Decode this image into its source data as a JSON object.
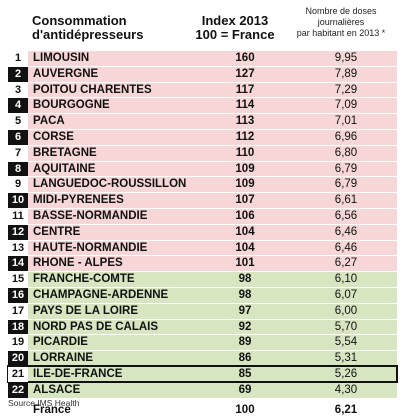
{
  "header": {
    "col1": [
      "Consommation",
      "d'antidépresseurs"
    ],
    "col2": [
      "Index  2013",
      "100 = France"
    ],
    "col3": [
      "Nombre de doses",
      "journalières",
      "par habitant en 2013 *"
    ]
  },
  "colors": {
    "pink": "#f6d6d6",
    "green": "#d7e5c1",
    "rank_dark": "#111111"
  },
  "rows": [
    {
      "rank": "1",
      "name": "LIMOUSIN",
      "index": "160",
      "doses": "9,95",
      "group": "pink",
      "rank_style": "light"
    },
    {
      "rank": "2",
      "name": "AUVERGNE",
      "index": "127",
      "doses": "7,89",
      "group": "pink",
      "rank_style": "dark"
    },
    {
      "rank": "3",
      "name": "POITOU CHARENTES",
      "index": "117",
      "doses": "7,29",
      "group": "pink",
      "rank_style": "light"
    },
    {
      "rank": "4",
      "name": "BOURGOGNE",
      "index": "114",
      "doses": "7,09",
      "group": "pink",
      "rank_style": "dark"
    },
    {
      "rank": "5",
      "name": "PACA",
      "index": "113",
      "doses": "7,01",
      "group": "pink",
      "rank_style": "light"
    },
    {
      "rank": "6",
      "name": "CORSE",
      "index": "112",
      "doses": "6,96",
      "group": "pink",
      "rank_style": "dark"
    },
    {
      "rank": "7",
      "name": "BRETAGNE",
      "index": "110",
      "doses": "6,80",
      "group": "pink",
      "rank_style": "light"
    },
    {
      "rank": "8",
      "name": "AQUITAINE",
      "index": "109",
      "doses": "6,79",
      "group": "pink",
      "rank_style": "dark"
    },
    {
      "rank": "9",
      "name": "LANGUEDOC-ROUSSILLON",
      "index": "109",
      "doses": "6,79",
      "group": "pink",
      "rank_style": "light"
    },
    {
      "rank": "10",
      "name": "MIDI-PYRENEES",
      "index": "107",
      "doses": "6,61",
      "group": "pink",
      "rank_style": "dark"
    },
    {
      "rank": "11",
      "name": "BASSE-NORMANDIE",
      "index": "106",
      "doses": "6,56",
      "group": "pink",
      "rank_style": "light"
    },
    {
      "rank": "12",
      "name": "CENTRE",
      "index": "104",
      "doses": "6,46",
      "group": "pink",
      "rank_style": "dark"
    },
    {
      "rank": "13",
      "name": "HAUTE-NORMANDIE",
      "index": "104",
      "doses": "6,46",
      "group": "pink",
      "rank_style": "light"
    },
    {
      "rank": "14",
      "name": "RHONE - ALPES",
      "index": "101",
      "doses": "6,27",
      "group": "pink",
      "rank_style": "dark"
    },
    {
      "rank": "15",
      "name": "FRANCHE-COMTE",
      "index": "98",
      "doses": "6,10",
      "group": "green",
      "rank_style": "light"
    },
    {
      "rank": "16",
      "name": "CHAMPAGNE-ARDENNE",
      "index": "98",
      "doses": "6,07",
      "group": "green",
      "rank_style": "dark"
    },
    {
      "rank": "17",
      "name": "PAYS DE LA LOIRE",
      "index": "97",
      "doses": "6,00",
      "group": "green",
      "rank_style": "light"
    },
    {
      "rank": "18",
      "name": "NORD PAS DE CALAIS",
      "index": "92",
      "doses": "5,70",
      "group": "green",
      "rank_style": "dark"
    },
    {
      "rank": "19",
      "name": "PICARDIE",
      "index": "89",
      "doses": "5,54",
      "group": "green",
      "rank_style": "light"
    },
    {
      "rank": "20",
      "name": "LORRAINE",
      "index": "86",
      "doses": "5,31",
      "group": "green",
      "rank_style": "dark"
    },
    {
      "rank": "21",
      "name": "ILE-DE-FRANCE",
      "index": "85",
      "doses": "5,26",
      "group": "green",
      "rank_style": "light",
      "highlight": true
    },
    {
      "rank": "22",
      "name": "ALSACE",
      "index": "69",
      "doses": "4,30",
      "group": "green",
      "rank_style": "dark"
    }
  ],
  "source": "Source IMS Health",
  "footer": {
    "name": "France",
    "index": "100",
    "doses": "6,21"
  }
}
